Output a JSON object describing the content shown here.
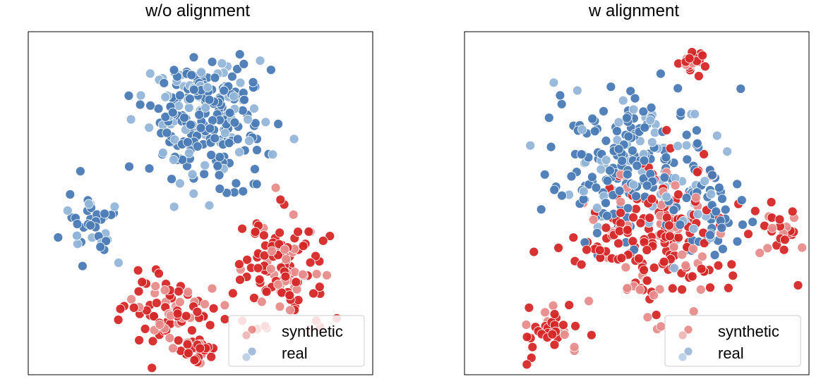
{
  "colors": {
    "synthetic_dark": "#d62728",
    "synthetic_light": "#e88c8c",
    "real_dark": "#4a7bb7",
    "real_light": "#93b6d9"
  },
  "chart_data": [
    {
      "type": "scatter",
      "title": "w/o alignment",
      "xlabel": "",
      "ylabel": "",
      "xlim": [
        0,
        100
      ],
      "ylim": [
        0,
        100
      ],
      "grid": false,
      "legend_position": "bottom-right",
      "legend": [
        "synthetic",
        "real"
      ],
      "series": [
        {
          "name": "real",
          "seed": 101,
          "clusters": [
            {
              "cx": 52,
              "cy": 72,
              "sx": 15,
              "sy": 14,
              "n": 190
            },
            {
              "cx": 18,
              "cy": 42,
              "sx": 7,
              "sy": 9,
              "n": 40
            },
            {
              "cx": 50,
              "cy": 84,
              "sx": 14,
              "sy": 6,
              "n": 60
            }
          ]
        },
        {
          "name": "synthetic",
          "seed": 202,
          "clusters": [
            {
              "cx": 74,
              "cy": 32,
              "sx": 11,
              "sy": 13,
              "n": 120
            },
            {
              "cx": 40,
              "cy": 19,
              "sx": 12,
              "sy": 9,
              "n": 80
            },
            {
              "cx": 48,
              "cy": 7,
              "sx": 5,
              "sy": 3,
              "n": 30
            }
          ]
        }
      ]
    },
    {
      "type": "scatter",
      "title": "w alignment",
      "xlabel": "",
      "ylabel": "",
      "xlim": [
        0,
        100
      ],
      "ylim": [
        0,
        100
      ],
      "grid": false,
      "legend_position": "bottom-right",
      "legend": [
        "synthetic",
        "real"
      ],
      "series": [
        {
          "name": "real",
          "seed": 303,
          "clusters": [
            {
              "cx": 48,
              "cy": 62,
              "sx": 18,
              "sy": 18,
              "n": 230
            },
            {
              "cx": 70,
              "cy": 45,
              "sx": 10,
              "sy": 10,
              "n": 50
            }
          ]
        },
        {
          "name": "synthetic",
          "seed": 404,
          "clusters": [
            {
              "cx": 55,
              "cy": 40,
              "sx": 20,
              "sy": 18,
              "n": 210
            },
            {
              "cx": 25,
              "cy": 13,
              "sx": 7,
              "sy": 7,
              "n": 40
            },
            {
              "cx": 66,
              "cy": 91,
              "sx": 4,
              "sy": 3,
              "n": 20
            },
            {
              "cx": 94,
              "cy": 42,
              "sx": 4,
              "sy": 4,
              "n": 20
            }
          ]
        }
      ]
    }
  ]
}
